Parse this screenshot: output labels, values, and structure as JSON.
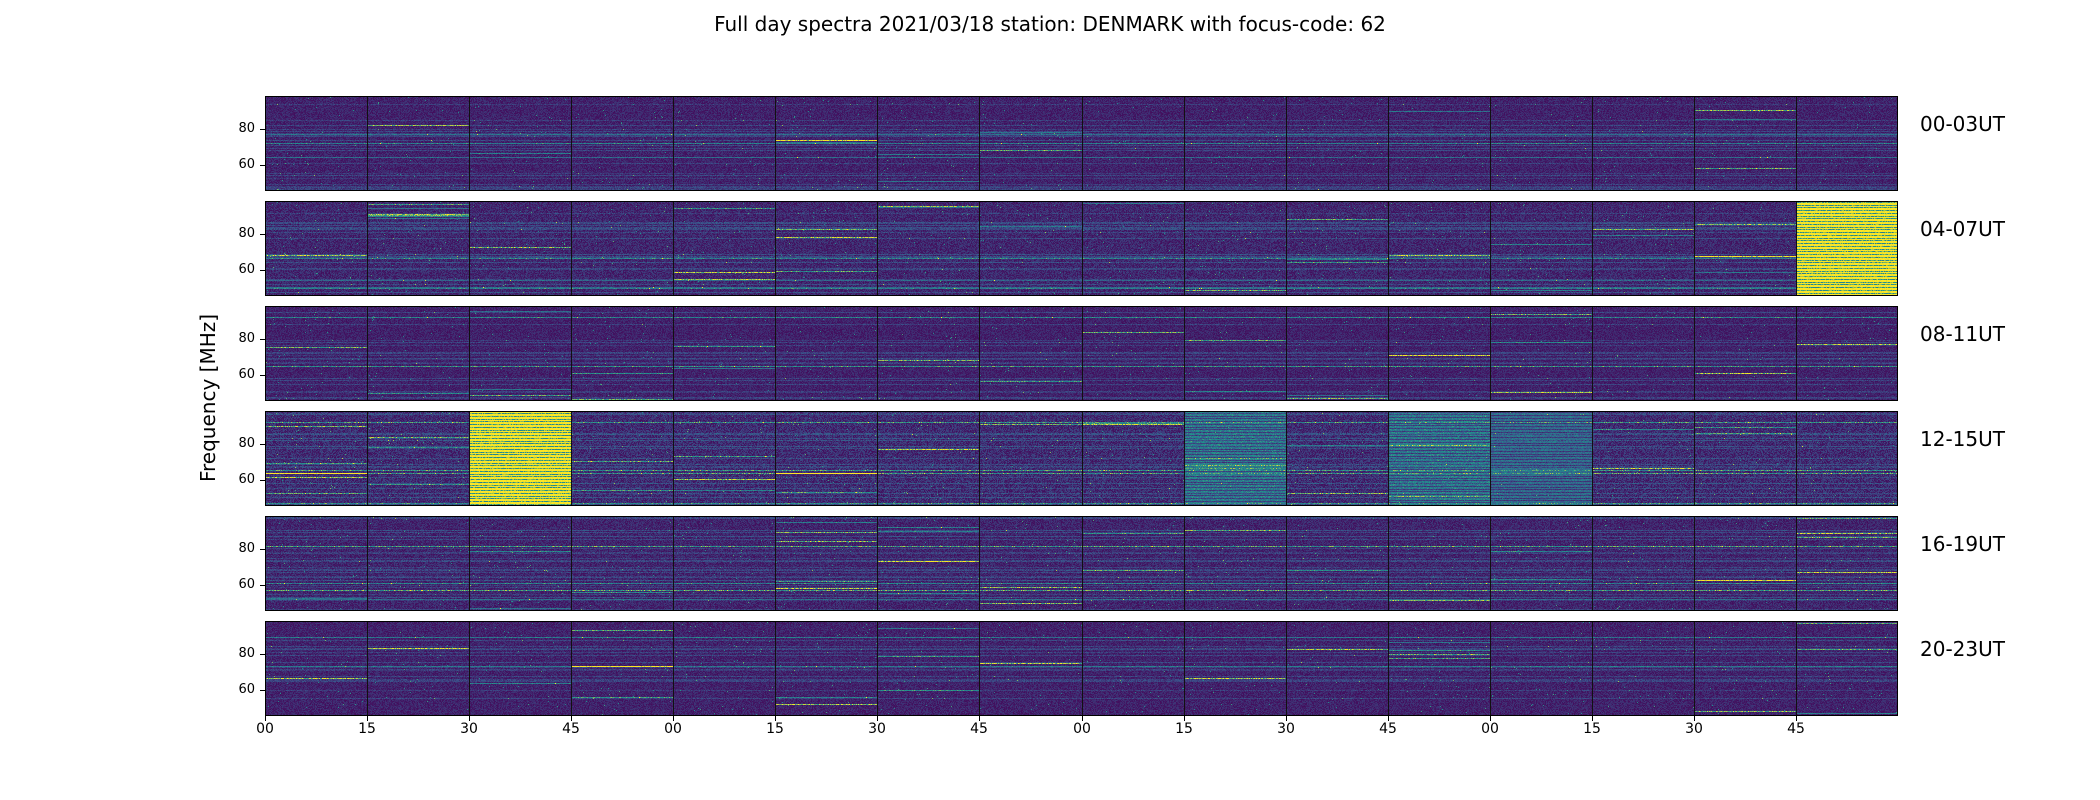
{
  "title": "Full day spectra 2021/03/18 station: DENMARK with focus-code: 62",
  "chart_data": {
    "type": "heatmap",
    "title": "Full day spectra 2021/03/18 station: DENMARK with focus-code: 62",
    "ylabel": "Frequency [MHz]",
    "xlabel": "",
    "colormap": "viridis",
    "colors": {
      "background": "#440154",
      "low": "#3b528b",
      "mid": "#21918c",
      "high": "#fde725"
    },
    "ylim": [
      45,
      99
    ],
    "yticks": [
      60,
      80
    ],
    "xticks": [
      "00",
      "15",
      "30",
      "45",
      "00",
      "15",
      "30",
      "45",
      "00",
      "15",
      "30",
      "45",
      "00",
      "15",
      "30",
      "45"
    ],
    "segments_per_row": 16,
    "segment_minutes": 15,
    "rows": [
      {
        "label": "00-03UT",
        "intensity": 0.35,
        "bursts": []
      },
      {
        "label": "04-07UT",
        "intensity": 0.55,
        "bursts": [
          {
            "segment": 15,
            "level": 1.0
          }
        ]
      },
      {
        "label": "08-11UT",
        "intensity": 0.3,
        "bursts": []
      },
      {
        "label": "12-15UT",
        "intensity": 0.75,
        "bursts": [
          {
            "segment": 2,
            "level": 1.0
          },
          {
            "segment": 9,
            "level": 0.7
          },
          {
            "segment": 11,
            "level": 0.7
          },
          {
            "segment": 12,
            "level": 0.6
          }
        ]
      },
      {
        "label": "16-19UT",
        "intensity": 0.45,
        "bursts": []
      },
      {
        "label": "20-23UT",
        "intensity": 0.35,
        "bursts": []
      }
    ]
  }
}
